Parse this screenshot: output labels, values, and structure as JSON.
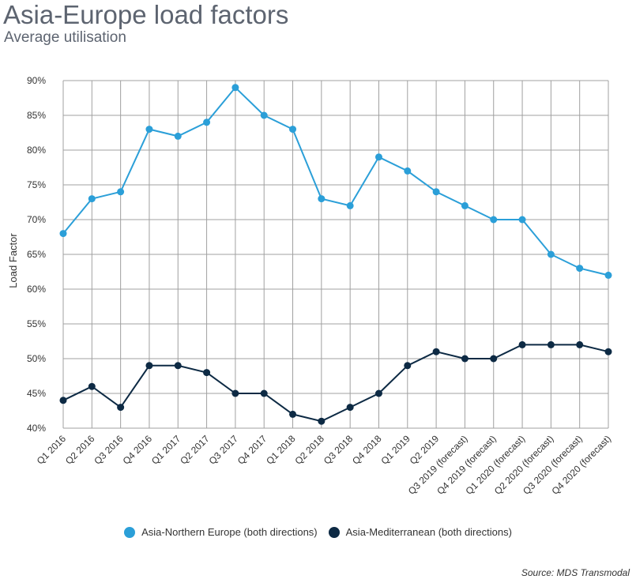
{
  "header": {
    "title": "Asia-Europe load factors",
    "subtitle": "Average utilisation"
  },
  "source": "Source: MDS Transmodal",
  "colors": {
    "series1": "#2b9fd8",
    "series2": "#0d2a44",
    "grid": "#a0a0a0",
    "text": "#333333"
  },
  "chart_data": {
    "type": "line",
    "title": "Asia-Europe load factors",
    "subtitle": "Average utilisation",
    "xlabel": "",
    "ylabel": "Load Factor",
    "ylim": [
      40,
      90
    ],
    "y_ticks": [
      "40%",
      "45%",
      "50%",
      "55%",
      "60%",
      "65%",
      "70%",
      "75%",
      "80%",
      "85%",
      "90%"
    ],
    "grid": true,
    "legend_position": "bottom",
    "categories": [
      "Q1 2016",
      "Q2 2016",
      "Q3 2016",
      "Q4 2016",
      "Q1 2017",
      "Q2 2017",
      "Q3 2017",
      "Q4 2017",
      "Q1 2018",
      "Q2 2018",
      "Q3 2018",
      "Q4 2018",
      "Q1 2019",
      "Q2 2019",
      "Q3 2019 (forecast)",
      "Q4 2019 (forecast)",
      "Q1 2020 (forecast)",
      "Q2 2020 (forecast)",
      "Q3 2020 (forecast)",
      "Q4 2020 (forecast)"
    ],
    "series": [
      {
        "name": "Asia-Northern Europe (both directions)",
        "color": "#2b9fd8",
        "values": [
          68,
          73,
          74,
          83,
          82,
          84,
          89,
          85,
          83,
          73,
          72,
          79,
          77,
          74,
          72,
          70,
          70,
          65,
          63,
          62
        ]
      },
      {
        "name": "Asia-Mediterranean (both directions)",
        "color": "#0d2a44",
        "values": [
          44,
          46,
          43,
          49,
          49,
          48,
          45,
          45,
          42,
          41,
          43,
          45,
          49,
          51,
          50,
          50,
          52,
          52,
          52,
          51
        ]
      }
    ]
  }
}
